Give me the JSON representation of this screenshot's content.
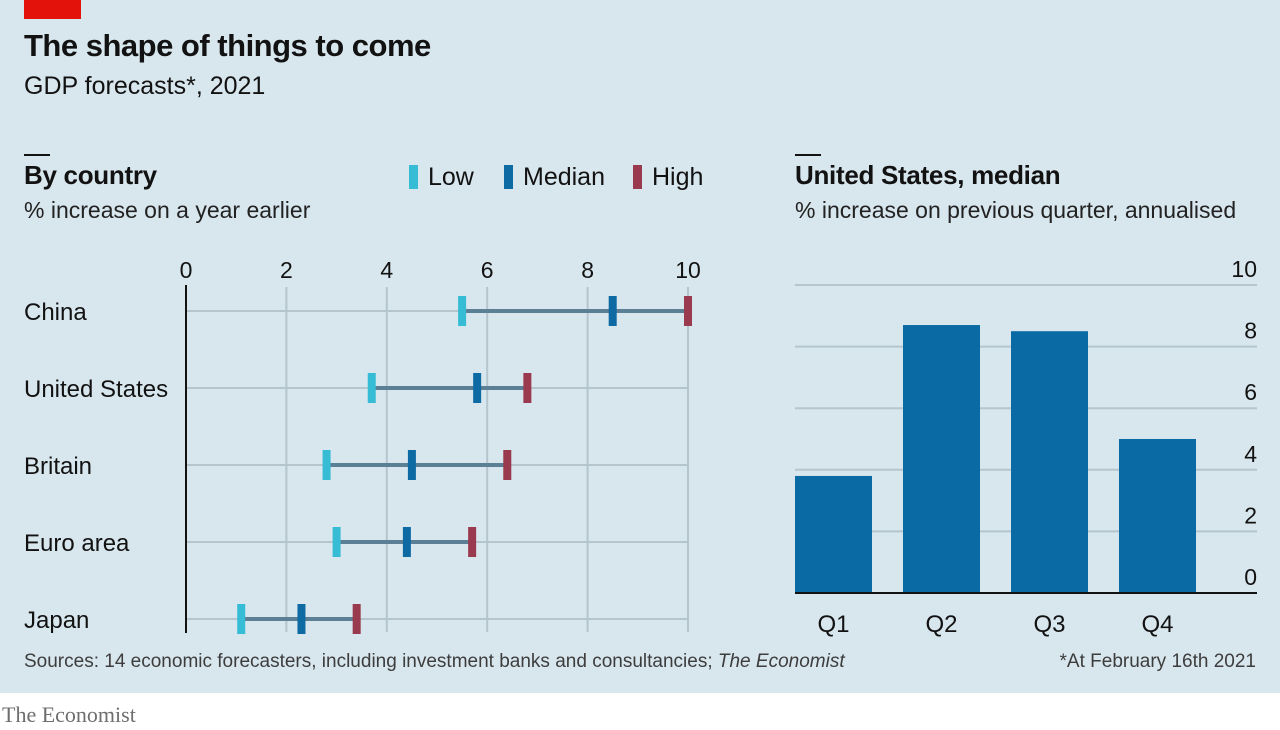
{
  "header": {
    "title": "The shape of things to come",
    "subtitle": "GDP forecasts*, 2021"
  },
  "left_panel": {
    "title": "By country",
    "subtitle": "% increase on a year earlier",
    "legend": [
      {
        "label": "Low",
        "color": "#36bcd4"
      },
      {
        "label": "Median",
        "color": "#0d6aa3"
      },
      {
        "label": "High",
        "color": "#9a3a4e"
      }
    ]
  },
  "right_panel": {
    "title": "United States, median",
    "subtitle": "% increase on previous quarter, annualised"
  },
  "footer": {
    "sources_prefix": "Sources: 14 economic forecasters, including investment banks and consultancies; ",
    "sources_italic": "The Economist",
    "note": "*At February 16th 2021",
    "brand": "The Economist"
  },
  "colors": {
    "background": "#d8e6ed",
    "low": "#36bcd4",
    "median": "#0d6aa3",
    "high": "#9a3a4e",
    "range_line": "#5b7f94",
    "bar": "#0a6aa3",
    "gridline": "#b4c5ce",
    "accent": "#e3120b"
  },
  "chart_data": [
    {
      "type": "range",
      "title": "By country",
      "subtitle": "% increase on a year earlier",
      "xlim": [
        0,
        10
      ],
      "xticks": [
        "0",
        "2",
        "4",
        "6",
        "8",
        "10"
      ],
      "categories": [
        "China",
        "United States",
        "Britain",
        "Euro area",
        "Japan"
      ],
      "series": [
        {
          "name": "Low",
          "values": [
            5.5,
            3.7,
            2.8,
            3.0,
            1.1
          ]
        },
        {
          "name": "Median",
          "values": [
            8.5,
            5.8,
            4.5,
            4.4,
            2.3
          ]
        },
        {
          "name": "High",
          "values": [
            10.0,
            6.8,
            6.4,
            5.7,
            3.4
          ]
        }
      ],
      "legend": "top",
      "grid": true
    },
    {
      "type": "bar",
      "title": "United States, median",
      "subtitle": "% increase on previous quarter, annualised",
      "categories": [
        "Q1",
        "Q2",
        "Q3",
        "Q4"
      ],
      "values": [
        3.8,
        8.7,
        8.5,
        5.0
      ],
      "ylim": [
        0,
        10
      ],
      "yticks": [
        "0",
        "2",
        "4",
        "6",
        "8",
        "10"
      ],
      "grid": true
    }
  ]
}
